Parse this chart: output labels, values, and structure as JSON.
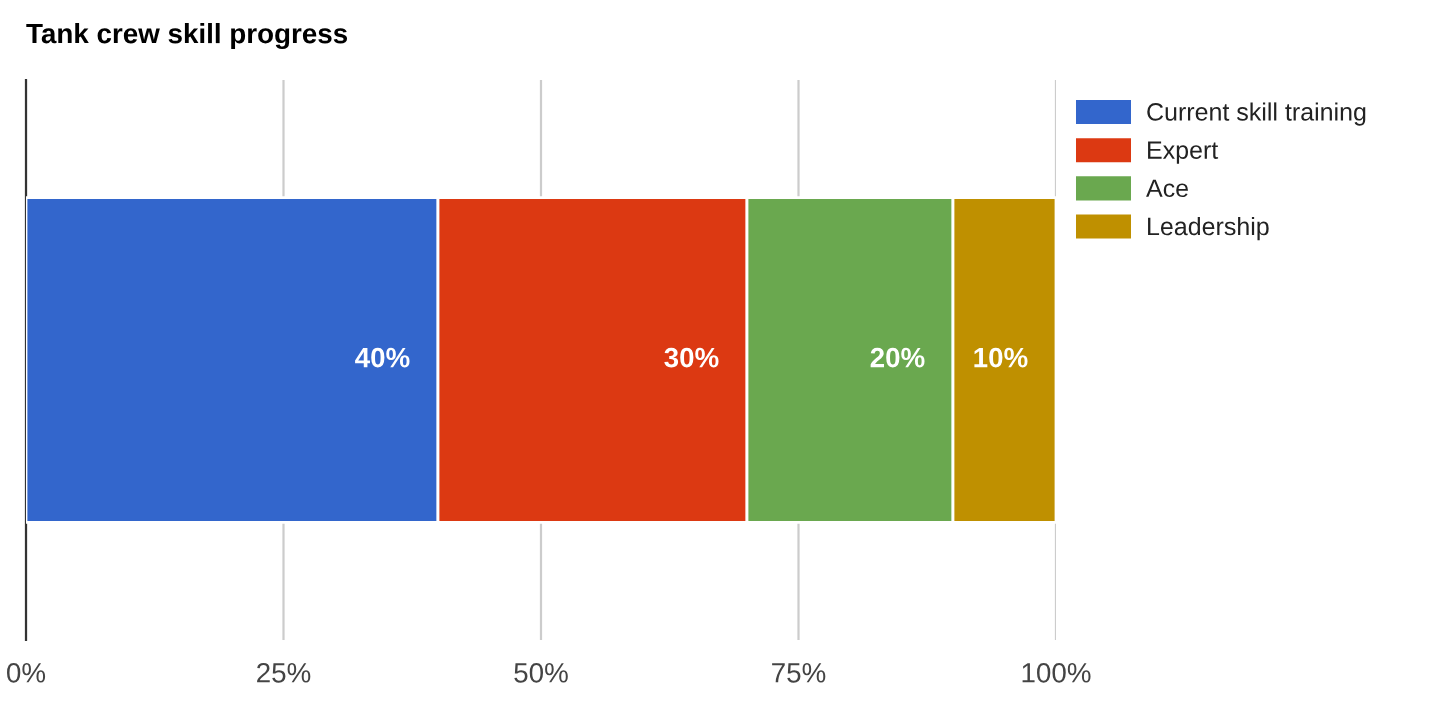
{
  "chart_data": {
    "type": "bar",
    "title": "Tank crew skill progress",
    "orientation": "horizontal",
    "stacked": true,
    "categories": [
      null
    ],
    "series": [
      {
        "name": "Current skill training",
        "color": "#3366cc",
        "values": [
          40
        ],
        "value_labels": [
          "40%"
        ]
      },
      {
        "name": "Expert",
        "color": "#dc3912",
        "values": [
          30
        ],
        "value_labels": [
          "30%"
        ]
      },
      {
        "name": "Ace",
        "color": "#6aa84f",
        "values": [
          20
        ],
        "value_labels": [
          "20%"
        ]
      },
      {
        "name": "Leadership",
        "color": "#bf9000",
        "values": [
          10
        ],
        "value_labels": [
          "10%"
        ]
      }
    ],
    "xlim": [
      0,
      100
    ],
    "xticks": [
      {
        "value": 0,
        "label": "0%"
      },
      {
        "value": 25,
        "label": "25%"
      },
      {
        "value": 50,
        "label": "50%"
      },
      {
        "value": 75,
        "label": "75%"
      },
      {
        "value": 100,
        "label": "100%"
      }
    ],
    "grid": "x",
    "legend": "top right"
  }
}
